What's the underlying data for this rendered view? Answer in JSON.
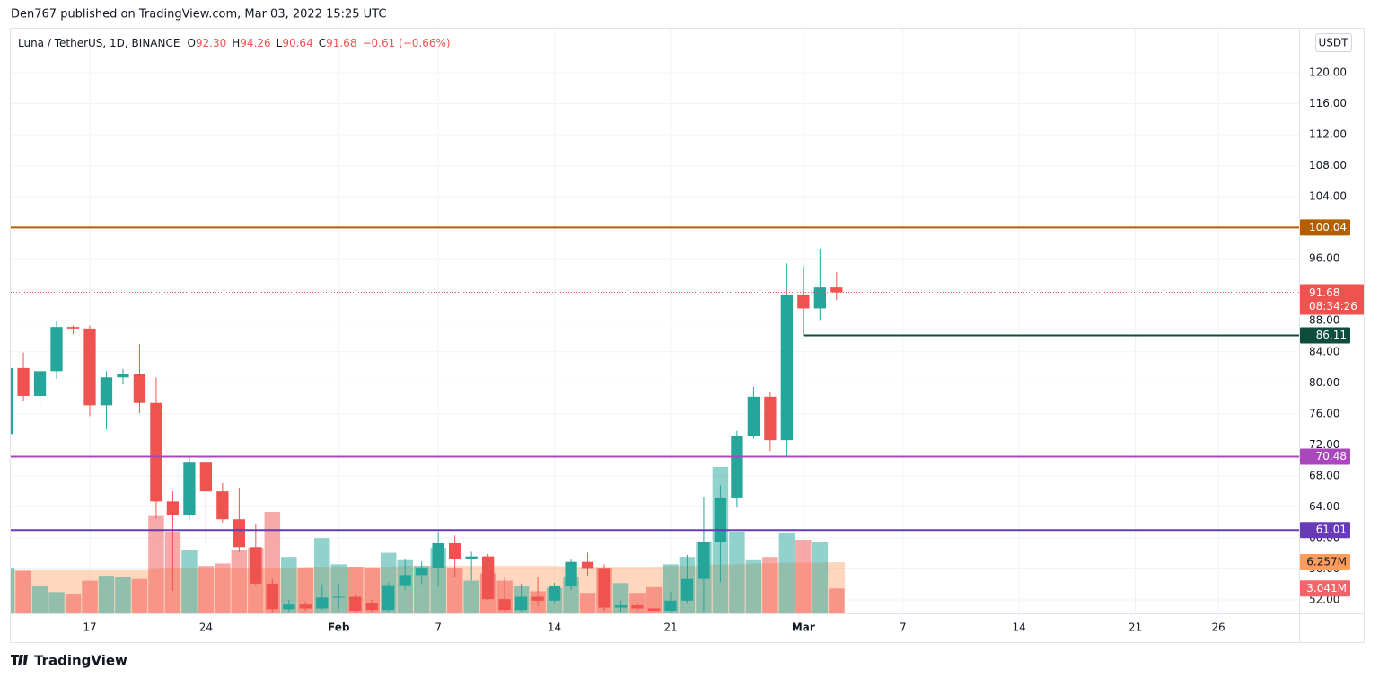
{
  "header": "Den767 published on TradingView.com, Mar 03, 2022 15:25 UTC",
  "brand": "TradingView",
  "chart_data": {
    "type": "candlestick",
    "legend": {
      "symbol": "Luna / TetherUS, 1D, BINANCE",
      "ohlc": [
        {
          "key": "O",
          "value": "92.30"
        },
        {
          "key": "H",
          "value": "94.26"
        },
        {
          "key": "L",
          "value": "90.64"
        },
        {
          "key": "C",
          "value": "91.68"
        }
      ],
      "change": "−0.61 (−0.66%)"
    },
    "currency": "USDT",
    "x": [
      12,
      13,
      14,
      15,
      16,
      17,
      18,
      19,
      20,
      21,
      22,
      23,
      24,
      25,
      26,
      27,
      28,
      29,
      30,
      31,
      32,
      33,
      34,
      35,
      36,
      37,
      38,
      39,
      40,
      41,
      42,
      43,
      44,
      45,
      46,
      47,
      48,
      49,
      50,
      51,
      52,
      53,
      54,
      55,
      56,
      57,
      58,
      59,
      60,
      61,
      62
    ],
    "open": [
      73.4,
      81.9,
      78.3,
      81.5,
      87.2,
      87.0,
      77.1,
      80.7,
      81.1,
      77.4,
      64.7,
      62.9,
      69.7,
      66.0,
      62.4,
      58.8,
      54.1,
      50.8,
      51.4,
      50.9,
      52.3,
      52.4,
      51.6,
      50.7,
      53.9,
      55.2,
      56.1,
      59.3,
      57.3,
      57.6,
      52.1,
      50.7,
      52.4,
      51.9,
      53.8,
      56.9,
      56.0,
      51.0,
      51.3,
      50.9,
      50.6,
      51.9,
      54.7,
      59.5,
      65.1,
      73.1,
      78.2,
      72.6,
      91.4,
      89.6,
      92.3
    ],
    "high": [
      82.5,
      83.9,
      82.6,
      88.0,
      87.4,
      87.4,
      81.5,
      81.8,
      85.0,
      80.7,
      66.0,
      70.3,
      70.0,
      67.1,
      66.5,
      61.8,
      54.7,
      52.0,
      51.8,
      54.0,
      54.1,
      52.8,
      52.0,
      54.3,
      57.3,
      57.0,
      60.8,
      60.3,
      58.2,
      57.9,
      54.9,
      54.1,
      54.9,
      54.2,
      57.2,
      58.1,
      56.6,
      51.9,
      51.6,
      51.3,
      53.0,
      57.8,
      65.3,
      66.8,
      73.8,
      79.5,
      78.9,
      95.4,
      95.0,
      97.3,
      94.26
    ],
    "low": [
      73.2,
      77.7,
      76.3,
      80.5,
      86.3,
      75.7,
      74.0,
      79.8,
      76.1,
      62.5,
      53.2,
      62.4,
      59.3,
      62.0,
      58.1,
      53.9,
      50.3,
      50.5,
      50.6,
      50.7,
      50.8,
      50.4,
      50.4,
      50.5,
      53.3,
      54.0,
      53.7,
      55.0,
      54.5,
      52.0,
      50.4,
      50.4,
      51.2,
      51.5,
      53.3,
      55.1,
      50.6,
      50.4,
      50.5,
      50.4,
      50.4,
      51.5,
      50.5,
      54.3,
      63.9,
      72.8,
      71.2,
      70.5,
      86.11,
      88.1,
      90.64
    ],
    "close": [
      81.9,
      78.3,
      81.5,
      87.2,
      87.0,
      77.1,
      80.7,
      81.1,
      77.4,
      64.7,
      62.9,
      69.7,
      66.0,
      62.4,
      58.8,
      54.1,
      50.8,
      51.4,
      50.9,
      52.3,
      52.4,
      50.6,
      50.7,
      53.9,
      55.2,
      56.1,
      59.3,
      57.3,
      57.6,
      52.1,
      50.7,
      52.4,
      51.9,
      53.8,
      56.9,
      56.0,
      51.0,
      51.3,
      50.9,
      50.6,
      51.9,
      54.7,
      59.5,
      65.1,
      73.1,
      78.2,
      72.6,
      91.4,
      89.6,
      92.3,
      91.68
    ],
    "up_color": "#26a69a",
    "down_color": "#ef5350",
    "volume": {
      "axis": "y2",
      "values": [
        5.5,
        5.2,
        3.4,
        2.6,
        2.3,
        4.0,
        4.6,
        4.5,
        4.2,
        11.9,
        10.0,
        7.7,
        5.8,
        6.1,
        7.7,
        8.0,
        12.4,
        6.9,
        5.6,
        9.2,
        6.0,
        5.7,
        5.6,
        7.4,
        6.5,
        5.8,
        8.0,
        5.6,
        4.0,
        4.9,
        4.0,
        3.3,
        2.7,
        3.1,
        4.5,
        2.5,
        5.6,
        3.7,
        2.5,
        3.2,
        6.0,
        6.9,
        8.8,
        17.9,
        10.0,
        6.5,
        6.9,
        9.9,
        9.0,
        8.7,
        3.041
      ],
      "last_label": "3.041M",
      "label_color": "#f0646a"
    },
    "volume_ma": {
      "axis": "y2",
      "values": [
        5.3,
        5.3,
        5.3,
        5.3,
        5.3,
        5.3,
        5.3,
        5.3,
        5.3,
        5.4,
        5.5,
        5.5,
        5.5,
        5.5,
        5.5,
        5.6,
        5.6,
        5.6,
        5.7,
        5.7,
        5.7,
        5.7,
        5.7,
        5.7,
        5.8,
        5.8,
        5.8,
        5.8,
        5.8,
        5.8,
        5.8,
        5.8,
        5.8,
        5.8,
        5.7,
        5.7,
        5.7,
        5.7,
        5.7,
        5.7,
        5.8,
        5.8,
        5.9,
        6.0,
        6.0,
        6.1,
        6.1,
        6.2,
        6.2,
        6.2,
        6.257
      ],
      "last_label": "6.257M",
      "color": "#ff9c5c"
    },
    "levels": [
      {
        "value": 100.04,
        "label": "100.04",
        "color": "#b35f00"
      },
      {
        "value": 86.11,
        "label": "86.11",
        "color": "#0e4d3b",
        "start_x": 60
      },
      {
        "value": 70.48,
        "label": "70.48",
        "color": "#ab47bc"
      },
      {
        "value": 61.01,
        "label": "61.01",
        "color": "#673ab7"
      }
    ],
    "last_price": {
      "value": 91.68,
      "label": "91.68",
      "countdown": "08:34:26",
      "color": "#ef5350"
    },
    "xlim": [
      12.24,
      89.87
    ],
    "xticks": [
      17,
      24,
      {
        "value": 32,
        "label": "Feb"
      },
      {
        "value": 38,
        "label": "7"
      },
      {
        "value": 45,
        "label": "14"
      },
      {
        "value": 52,
        "label": "21"
      },
      {
        "value": 60,
        "label": "Mar"
      },
      {
        "value": 66,
        "label": "7"
      },
      {
        "value": 73,
        "label": "14"
      },
      {
        "value": 80,
        "label": "21"
      },
      {
        "value": 85,
        "label": "26"
      }
    ],
    "ylim": [
      50.26,
      125.68
    ],
    "yticks": [
      {
        "value": 52,
        "label": "52.00"
      },
      {
        "value": 56,
        "label": "56.00"
      },
      {
        "value": 60,
        "label": "60.00"
      },
      {
        "value": 64,
        "label": "64.00"
      },
      {
        "value": 68,
        "label": "68.00"
      },
      {
        "value": 72,
        "label": "72.00"
      },
      {
        "value": 76,
        "label": "76.00"
      },
      {
        "value": 80,
        "label": "80.00"
      },
      {
        "value": 84,
        "label": "84.00"
      },
      {
        "value": 88,
        "label": "88.00"
      },
      {
        "value": 92,
        "label": "92.00"
      },
      {
        "value": 96,
        "label": "96.00"
      },
      {
        "value": 100,
        "label": "100.00"
      },
      {
        "value": 104,
        "label": "104.00"
      },
      {
        "value": 108,
        "label": "108.00"
      },
      {
        "value": 112,
        "label": "112.00"
      },
      {
        "value": 116,
        "label": "116.00"
      },
      {
        "value": 120,
        "label": "120.00"
      }
    ],
    "y2lim": [
      0,
      71.46
    ],
    "grid": true
  }
}
